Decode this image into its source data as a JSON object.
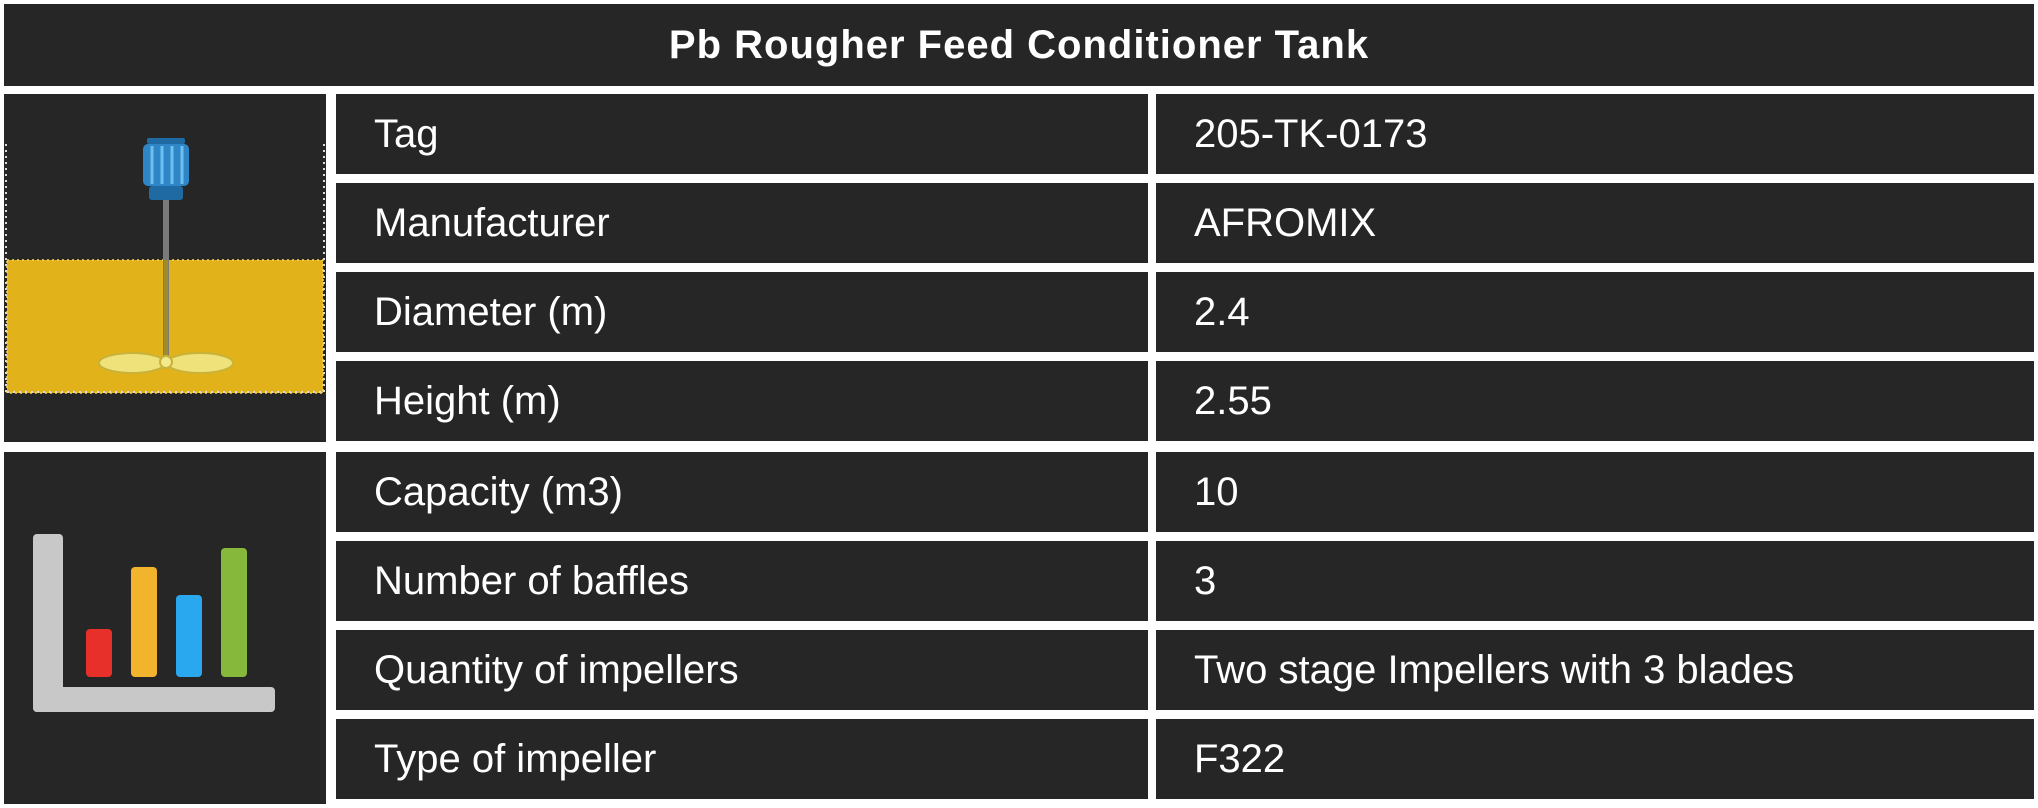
{
  "header": {
    "title": "Pb Rougher Feed Conditioner Tank"
  },
  "icons": {
    "tank": "agitated-tank-icon",
    "chart": "bar-chart-icon"
  },
  "colors": {
    "background": "#262626",
    "border": "#ffffff",
    "text": "#ffffff",
    "slurry": "#e2b21a",
    "motor": "#2f86c6",
    "bar_red": "#e8302a",
    "bar_yellow": "#f2b42c",
    "bar_blue": "#2aa8ef",
    "bar_green": "#86b83b",
    "axis": "#c8c8c8"
  },
  "table": {
    "rows": [
      {
        "label": "Tag",
        "value": "205-TK-0173"
      },
      {
        "label": "Manufacturer",
        "value": "AFROMIX"
      },
      {
        "label": "Diameter (m)",
        "value": "2.4"
      },
      {
        "label": "Height (m)",
        "value": "2.55"
      },
      {
        "label": "Capacity (m3)",
        "value": "10"
      },
      {
        "label": "Number of baffles",
        "value": "3"
      },
      {
        "label": "Quantity of impellers",
        "value": "Two stage Impellers with 3 blades"
      },
      {
        "label": "Type of impeller",
        "value": "F322"
      }
    ]
  }
}
